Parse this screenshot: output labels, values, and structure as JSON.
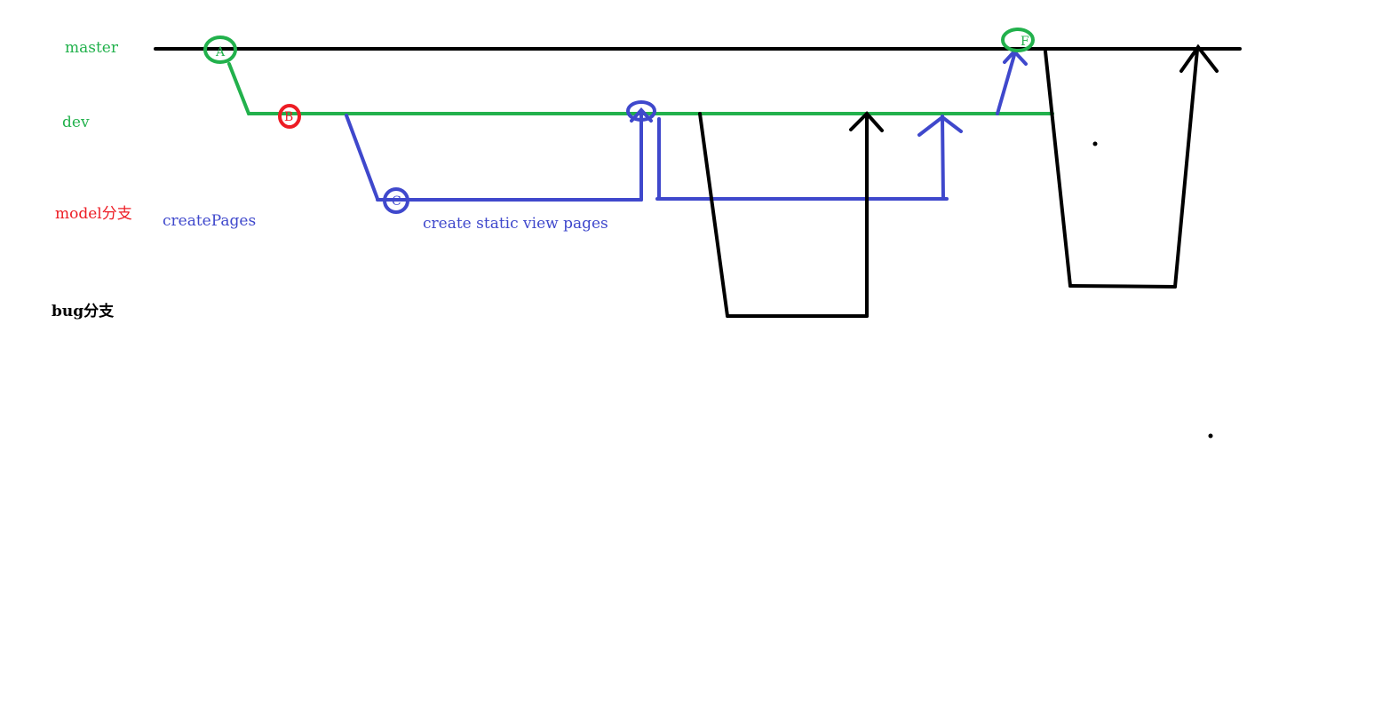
{
  "branches": {
    "master": {
      "label": "master",
      "color": "#22b14c"
    },
    "dev": {
      "label": "dev",
      "color": "#22b14c"
    },
    "model": {
      "label": "model分支",
      "color": "#ed1c24"
    },
    "bug": {
      "label": "bug分支",
      "color": "#000000"
    }
  },
  "annotations": {
    "create_pages": "createPages",
    "create_static": "create static view pages"
  },
  "commits": {
    "a": "A",
    "b": "B",
    "c": "C",
    "f": "F"
  },
  "colors": {
    "master_line": "#000000",
    "dev_line": "#22b14c",
    "feature_line": "#3f48cc",
    "bug_line": "#000000",
    "commit_b": "#ed1c24",
    "commit_af": "#22b14c",
    "commit_c": "#3f48cc"
  }
}
